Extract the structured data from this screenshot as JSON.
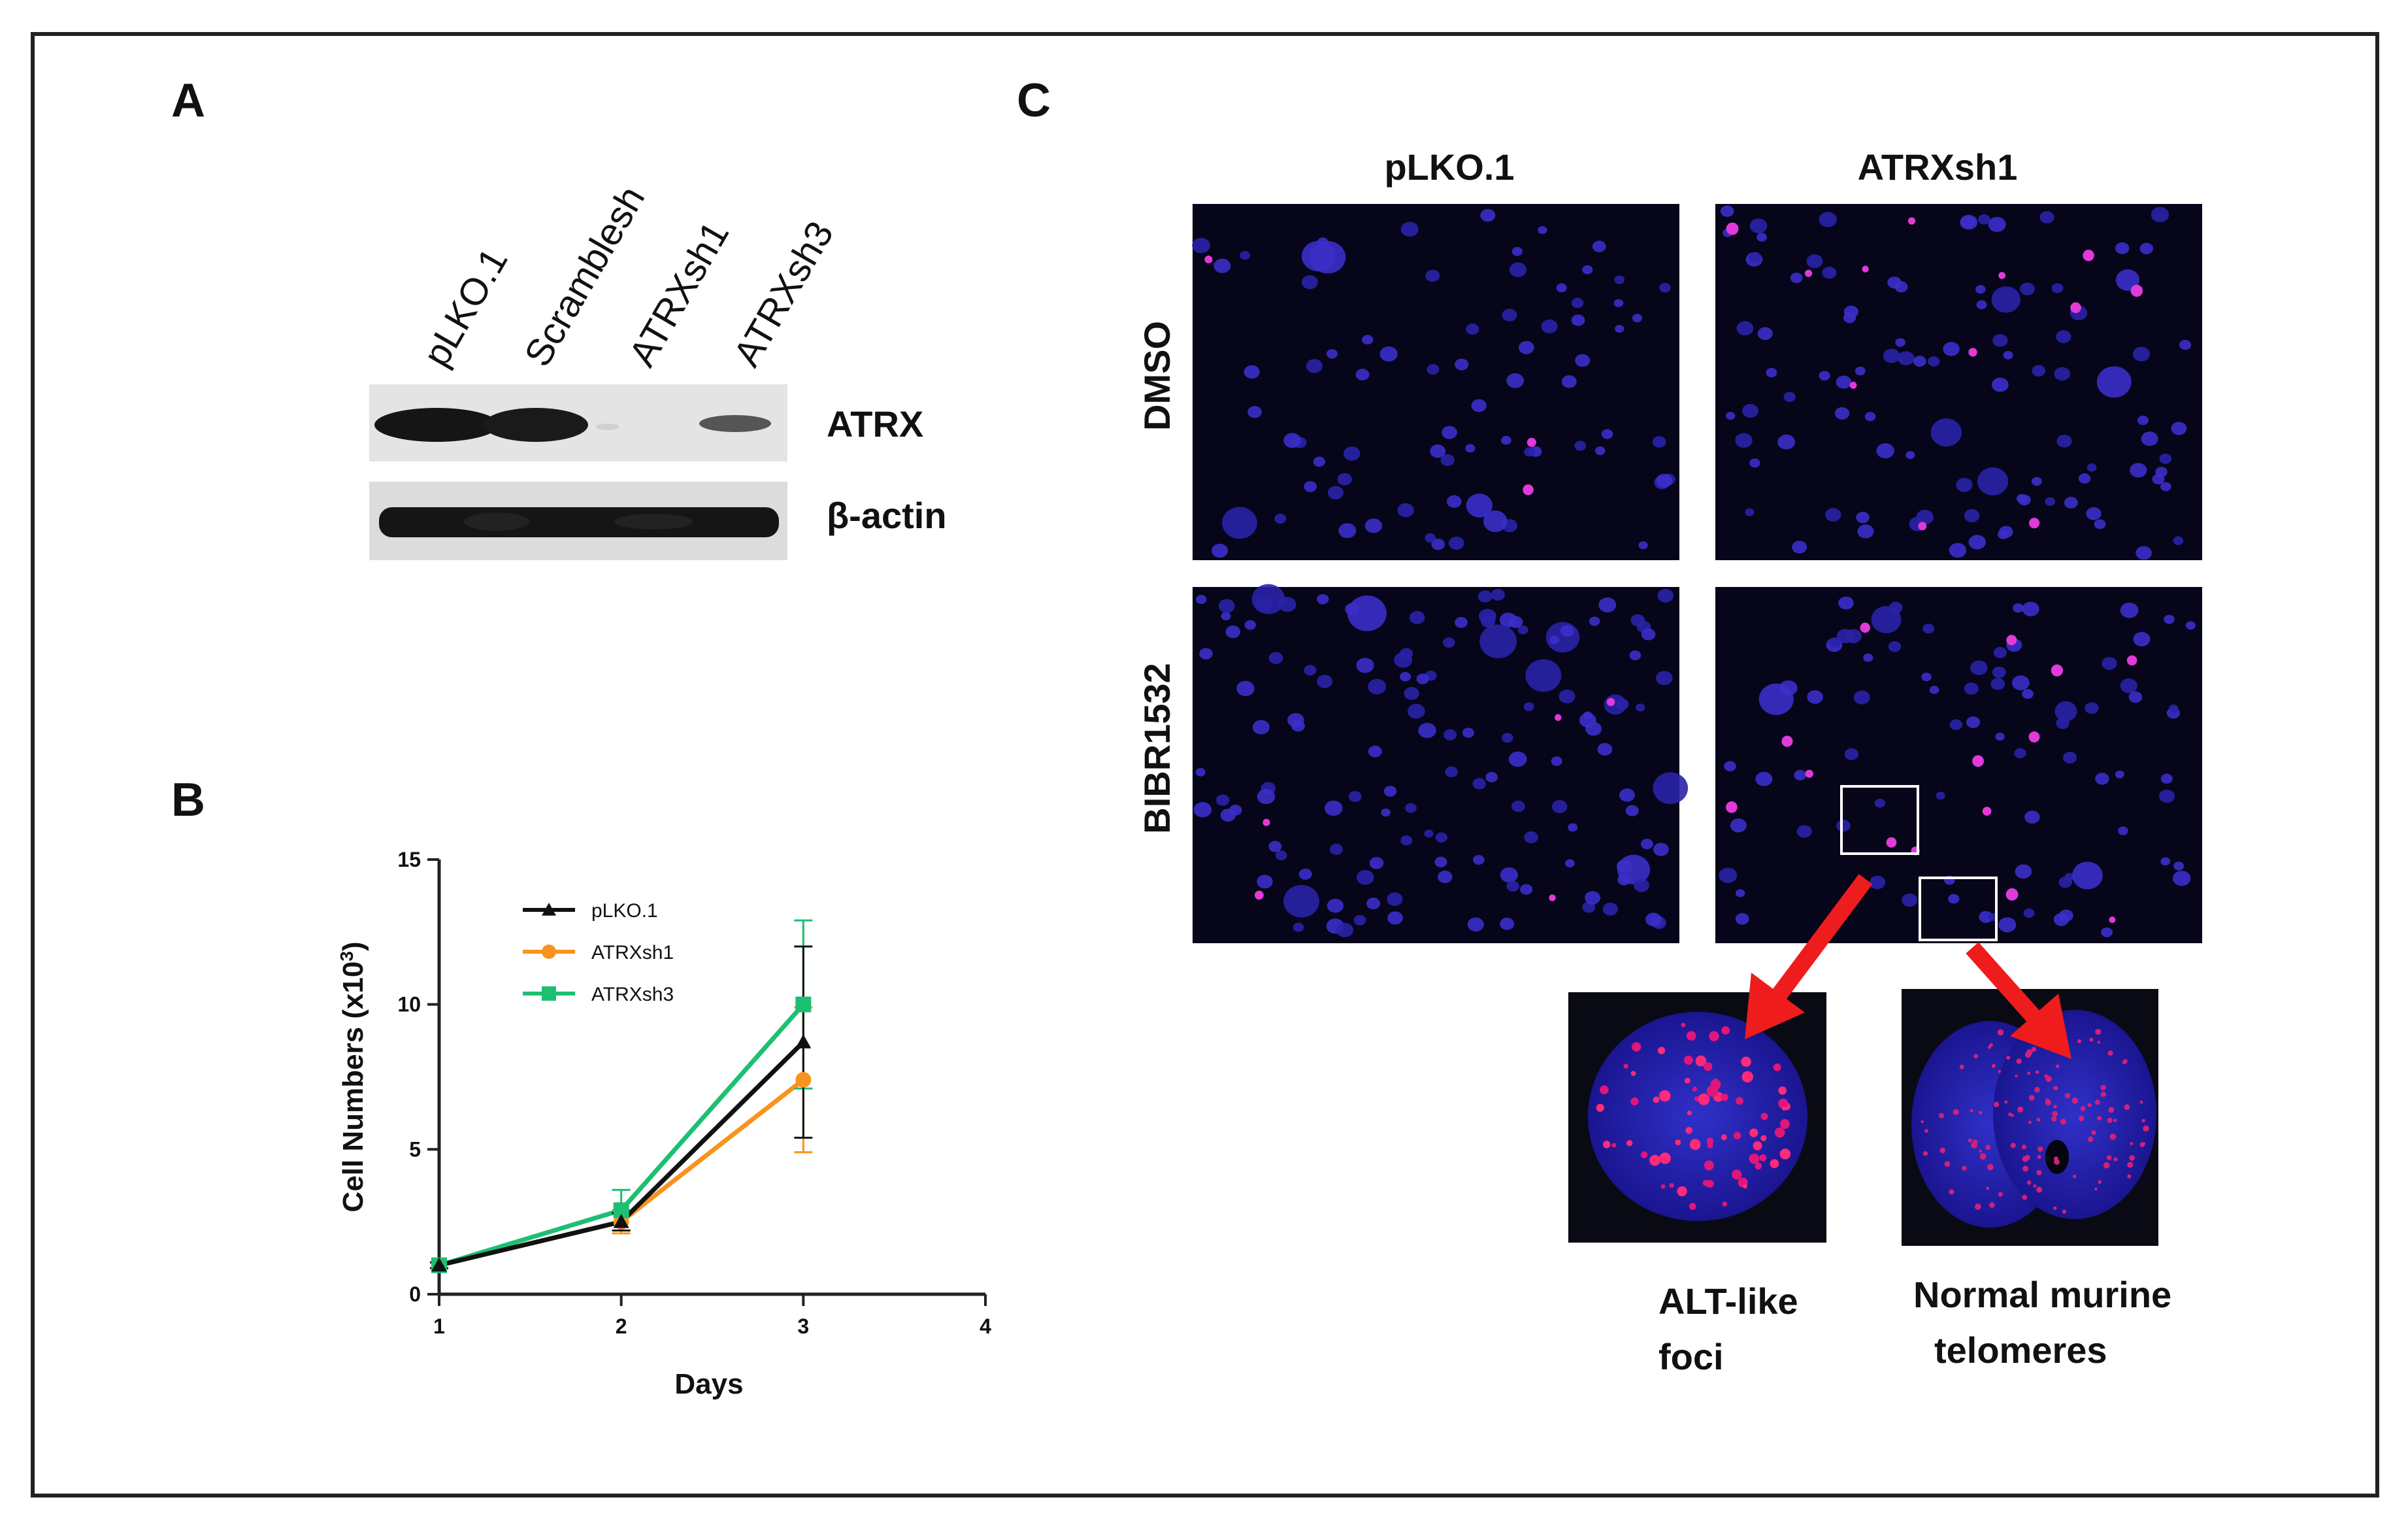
{
  "panels": {
    "A": {
      "letter": "A",
      "lanes": [
        "pLKO.1",
        "Scramblesh",
        "ATRXsh1",
        "ATRXsh3"
      ],
      "blots": [
        "ATRX",
        "β-actin"
      ]
    },
    "B": {
      "letter": "B"
    },
    "C": {
      "letter": "C",
      "columns": [
        "pLKO.1",
        "ATRXsh1"
      ],
      "rows": [
        "DMSO",
        "BIBR1532"
      ],
      "insets": [
        {
          "label_line1": "ALT-like",
          "label_line2": "foci"
        },
        {
          "label_line1": "Normal murine",
          "label_line2": "telomeres"
        }
      ]
    }
  },
  "chart_data": {
    "type": "line",
    "title": "",
    "xlabel": "Days",
    "ylabel": "Cell Numbers (x10",
    "ylabel_sup": "3",
    "ylabel_close": ")",
    "xlim": [
      1,
      4
    ],
    "ylim": [
      0,
      15
    ],
    "xticks": [
      "1",
      "2",
      "3",
      "4"
    ],
    "yticks": [
      "0",
      "5",
      "10",
      "15"
    ],
    "grid": false,
    "legend_position": "top-left",
    "x": [
      1,
      2,
      3
    ],
    "series": [
      {
        "name": "pLKO.1",
        "color": "#111111",
        "marker": "triangle",
        "values": [
          1.0,
          2.5,
          8.7
        ],
        "errors": [
          0.1,
          0.3,
          3.3
        ]
      },
      {
        "name": "ATRXsh1",
        "color": "#f7931e",
        "marker": "circle",
        "values": [
          1.0,
          2.5,
          7.4
        ],
        "errors": [
          0.1,
          0.4,
          2.5
        ]
      },
      {
        "name": "ATRXsh3",
        "color": "#1dbf73",
        "marker": "square",
        "values": [
          1.0,
          2.9,
          10.0
        ],
        "errors": [
          0.1,
          0.7,
          2.9
        ]
      }
    ]
  }
}
